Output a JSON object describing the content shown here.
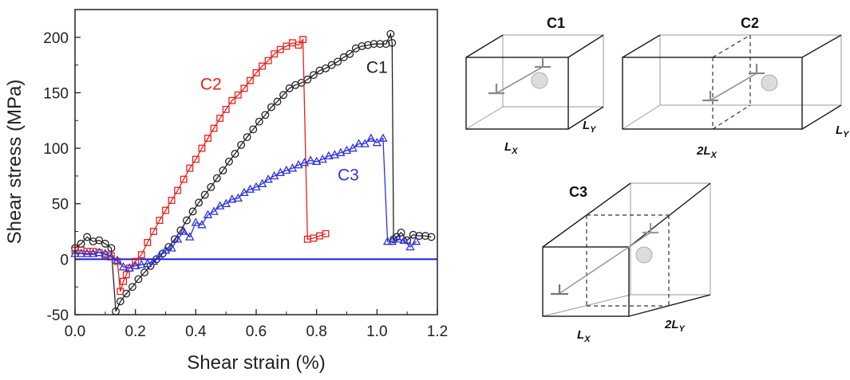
{
  "chart_data": {
    "type": "line",
    "xlabel": "Shear strain (%)",
    "ylabel": "Shear stress (MPa)",
    "xlim": [
      0.0,
      1.2
    ],
    "ylim": [
      -50,
      225
    ],
    "x_ticks": [
      "0.0",
      "0.2",
      "0.4",
      "0.6",
      "0.8",
      "1.0",
      "1.2"
    ],
    "y_ticks": [
      "-50",
      "0",
      "50",
      "100",
      "150",
      "200"
    ],
    "x_tick_values": [
      0.0,
      0.2,
      0.4,
      0.6,
      0.8,
      1.0,
      1.2
    ],
    "y_tick_values": [
      -50,
      0,
      50,
      100,
      150,
      200
    ],
    "grid": false,
    "legend": "none",
    "zero_line_color": "#1a1adc",
    "series": [
      {
        "name": "C1",
        "color": "#222222",
        "marker": "circle",
        "points": [
          [
            0.0,
            10
          ],
          [
            0.02,
            14
          ],
          [
            0.04,
            20
          ],
          [
            0.06,
            16
          ],
          [
            0.08,
            17
          ],
          [
            0.1,
            14
          ],
          [
            0.12,
            10
          ],
          [
            0.135,
            -47
          ],
          [
            0.15,
            -38
          ],
          [
            0.17,
            -31
          ],
          [
            0.19,
            -25
          ],
          [
            0.21,
            -18
          ],
          [
            0.23,
            -12
          ],
          [
            0.25,
            -6
          ],
          [
            0.27,
            0
          ],
          [
            0.29,
            5
          ],
          [
            0.31,
            11
          ],
          [
            0.33,
            18
          ],
          [
            0.35,
            26
          ],
          [
            0.37,
            35
          ],
          [
            0.39,
            43
          ],
          [
            0.41,
            51
          ],
          [
            0.43,
            58
          ],
          [
            0.45,
            65
          ],
          [
            0.47,
            73
          ],
          [
            0.49,
            80
          ],
          [
            0.51,
            88
          ],
          [
            0.53,
            95
          ],
          [
            0.55,
            103
          ],
          [
            0.57,
            110
          ],
          [
            0.59,
            117
          ],
          [
            0.61,
            124
          ],
          [
            0.63,
            130
          ],
          [
            0.65,
            137
          ],
          [
            0.67,
            142
          ],
          [
            0.69,
            148
          ],
          [
            0.71,
            154
          ],
          [
            0.73,
            157
          ],
          [
            0.75,
            159
          ],
          [
            0.77,
            162
          ],
          [
            0.79,
            166
          ],
          [
            0.81,
            170
          ],
          [
            0.83,
            172
          ],
          [
            0.85,
            175
          ],
          [
            0.87,
            178
          ],
          [
            0.89,
            182
          ],
          [
            0.91,
            185
          ],
          [
            0.93,
            190
          ],
          [
            0.95,
            192
          ],
          [
            0.97,
            193
          ],
          [
            0.99,
            194
          ],
          [
            1.01,
            194
          ],
          [
            1.03,
            194
          ],
          [
            1.045,
            203
          ],
          [
            1.05,
            195
          ],
          [
            1.055,
            18
          ],
          [
            1.065,
            20
          ],
          [
            1.08,
            24
          ],
          [
            1.1,
            17
          ],
          [
            1.12,
            22
          ],
          [
            1.14,
            21
          ],
          [
            1.16,
            21
          ],
          [
            1.18,
            20
          ]
        ]
      },
      {
        "name": "C2",
        "color": "#e8211c",
        "marker": "square",
        "points": [
          [
            0.0,
            8
          ],
          [
            0.02,
            8
          ],
          [
            0.04,
            7
          ],
          [
            0.06,
            7
          ],
          [
            0.08,
            6
          ],
          [
            0.1,
            4
          ],
          [
            0.12,
            3
          ],
          [
            0.14,
            -2
          ],
          [
            0.15,
            -29
          ],
          [
            0.16,
            -20
          ],
          [
            0.17,
            -14
          ],
          [
            0.18,
            -8
          ],
          [
            0.2,
            -2
          ],
          [
            0.22,
            4
          ],
          [
            0.24,
            15
          ],
          [
            0.26,
            25
          ],
          [
            0.28,
            35
          ],
          [
            0.3,
            44
          ],
          [
            0.32,
            53
          ],
          [
            0.34,
            62
          ],
          [
            0.36,
            72
          ],
          [
            0.38,
            82
          ],
          [
            0.4,
            90
          ],
          [
            0.42,
            100
          ],
          [
            0.44,
            109
          ],
          [
            0.46,
            118
          ],
          [
            0.48,
            127
          ],
          [
            0.5,
            135
          ],
          [
            0.52,
            143
          ],
          [
            0.54,
            148
          ],
          [
            0.56,
            154
          ],
          [
            0.58,
            161
          ],
          [
            0.6,
            168
          ],
          [
            0.62,
            174
          ],
          [
            0.64,
            179
          ],
          [
            0.66,
            185
          ],
          [
            0.68,
            189
          ],
          [
            0.7,
            192
          ],
          [
            0.72,
            195
          ],
          [
            0.74,
            193
          ],
          [
            0.755,
            198
          ],
          [
            0.77,
            18
          ],
          [
            0.79,
            19
          ],
          [
            0.81,
            21
          ],
          [
            0.83,
            23
          ]
        ]
      },
      {
        "name": "C3",
        "color": "#2e33dd",
        "marker": "triangle",
        "points": [
          [
            0.0,
            5
          ],
          [
            0.02,
            5
          ],
          [
            0.04,
            5
          ],
          [
            0.06,
            5
          ],
          [
            0.08,
            6
          ],
          [
            0.1,
            5
          ],
          [
            0.12,
            2
          ],
          [
            0.14,
            -1
          ],
          [
            0.16,
            -7
          ],
          [
            0.18,
            -8
          ],
          [
            0.2,
            -6
          ],
          [
            0.22,
            -5
          ],
          [
            0.24,
            -4
          ],
          [
            0.26,
            -2
          ],
          [
            0.28,
            3
          ],
          [
            0.3,
            8
          ],
          [
            0.32,
            10
          ],
          [
            0.34,
            18
          ],
          [
            0.36,
            25
          ],
          [
            0.38,
            20
          ],
          [
            0.4,
            33
          ],
          [
            0.42,
            31
          ],
          [
            0.44,
            40
          ],
          [
            0.46,
            43
          ],
          [
            0.48,
            48
          ],
          [
            0.5,
            50
          ],
          [
            0.52,
            54
          ],
          [
            0.54,
            55
          ],
          [
            0.56,
            60
          ],
          [
            0.58,
            63
          ],
          [
            0.6,
            65
          ],
          [
            0.62,
            68
          ],
          [
            0.64,
            72
          ],
          [
            0.66,
            75
          ],
          [
            0.68,
            78
          ],
          [
            0.7,
            80
          ],
          [
            0.72,
            82
          ],
          [
            0.74,
            85
          ],
          [
            0.76,
            87
          ],
          [
            0.78,
            89
          ],
          [
            0.8,
            88
          ],
          [
            0.82,
            90
          ],
          [
            0.84,
            93
          ],
          [
            0.86,
            94
          ],
          [
            0.88,
            96
          ],
          [
            0.9,
            98
          ],
          [
            0.92,
            100
          ],
          [
            0.94,
            104
          ],
          [
            0.96,
            104
          ],
          [
            0.98,
            109
          ],
          [
            1.0,
            105
          ],
          [
            1.02,
            109
          ],
          [
            1.035,
            16
          ],
          [
            1.05,
            16
          ],
          [
            1.07,
            18
          ],
          [
            1.09,
            17
          ],
          [
            1.11,
            11
          ],
          [
            1.13,
            16
          ]
        ]
      }
    ],
    "series_labels": [
      {
        "text": "C1",
        "x": 1.0,
        "y": 168,
        "color": "#222222"
      },
      {
        "text": "C2",
        "x": 0.45,
        "y": 153,
        "color": "#e8211c"
      },
      {
        "text": "C3",
        "x": 0.905,
        "y": 71,
        "color": "#2e33dd"
      }
    ]
  },
  "diagram": {
    "c1": {
      "title": "C1",
      "lx": "L",
      "lx_sub": "X",
      "ly": "L",
      "ly_sub": "Y"
    },
    "c2": {
      "title": "C2",
      "lx": "2L",
      "lx_sub": "X",
      "ly": "L",
      "ly_sub": "Y"
    },
    "c3": {
      "title": "C3",
      "lx": "L",
      "lx_sub": "X",
      "ly": "2L",
      "ly_sub": "Y"
    }
  }
}
